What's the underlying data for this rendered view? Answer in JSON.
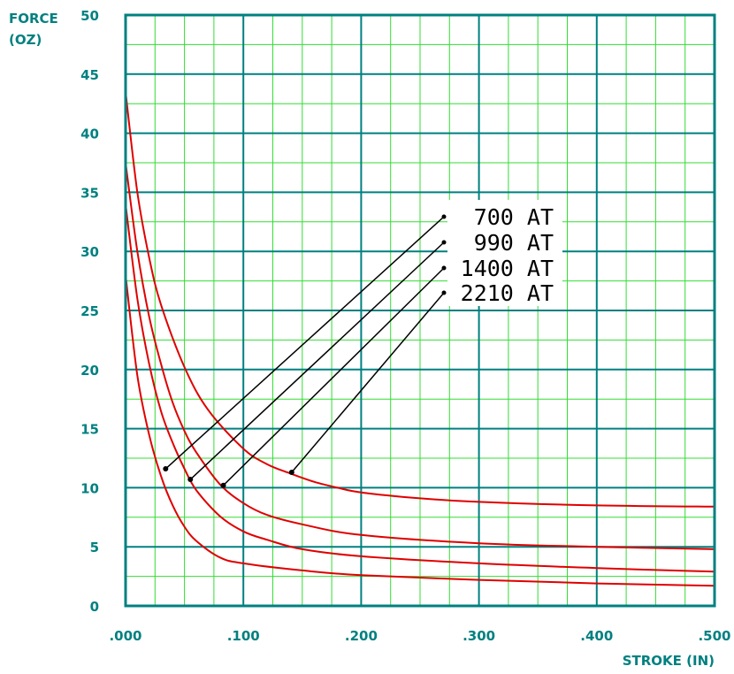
{
  "chart_data": {
    "type": "line",
    "xlabel": "STROKE (IN)",
    "ylabel_line1": "FORCE",
    "ylabel_line2": "(OZ)",
    "xlim": [
      0,
      0.5
    ],
    "ylim": [
      0,
      50
    ],
    "x_ticks": [
      ".000",
      ".100",
      ".200",
      ".300",
      ".400",
      ".500"
    ],
    "y_ticks": [
      "0",
      "5",
      "10",
      "15",
      "20",
      "25",
      "30",
      "35",
      "40",
      "45",
      "50"
    ],
    "grid": true,
    "colors": {
      "axis": "#008080",
      "major_grid": "#008080",
      "minor_grid": "#33dd33",
      "curve": "#e00000",
      "leader": "#000000"
    },
    "series": [
      {
        "name": "700 AT",
        "x": [
          0.0,
          0.01,
          0.02,
          0.03,
          0.04,
          0.05,
          0.06,
          0.08,
          0.1,
          0.15,
          0.2,
          0.3,
          0.4,
          0.5
        ],
        "y": [
          28,
          19.5,
          14.5,
          11,
          8.5,
          6.7,
          5.5,
          4.1,
          3.6,
          3.0,
          2.6,
          2.2,
          1.9,
          1.7
        ],
        "marker": {
          "x": 0.034,
          "y": 11.6
        }
      },
      {
        "name": "990 AT",
        "x": [
          0.0,
          0.01,
          0.02,
          0.03,
          0.04,
          0.05,
          0.06,
          0.08,
          0.1,
          0.12,
          0.15,
          0.2,
          0.3,
          0.4,
          0.5
        ],
        "y": [
          34,
          26,
          20.5,
          16.5,
          13.8,
          11.6,
          9.8,
          7.6,
          6.3,
          5.6,
          4.8,
          4.2,
          3.6,
          3.2,
          2.9
        ],
        "marker": {
          "x": 0.055,
          "y": 10.7
        }
      },
      {
        "name": "1400 AT",
        "x": [
          0.0,
          0.01,
          0.02,
          0.03,
          0.04,
          0.05,
          0.06,
          0.08,
          0.1,
          0.12,
          0.15,
          0.2,
          0.3,
          0.4,
          0.5
        ],
        "y": [
          37.5,
          30,
          24.5,
          20.5,
          17.2,
          14.8,
          13,
          10.3,
          8.7,
          7.7,
          6.9,
          6.0,
          5.3,
          5.0,
          4.8
        ],
        "marker": {
          "x": 0.083,
          "y": 10.2
        }
      },
      {
        "name": "2210 AT",
        "x": [
          0.0,
          0.01,
          0.02,
          0.03,
          0.05,
          0.07,
          0.1,
          0.12,
          0.14,
          0.16,
          0.18,
          0.2,
          0.25,
          0.3,
          0.4,
          0.5
        ],
        "y": [
          43.5,
          35,
          29.5,
          25.5,
          20.2,
          16.6,
          13.3,
          12.0,
          11.2,
          10.5,
          10.0,
          9.6,
          9.1,
          8.8,
          8.5,
          8.4
        ],
        "marker": {
          "x": 0.141,
          "y": 11.3
        }
      }
    ]
  }
}
